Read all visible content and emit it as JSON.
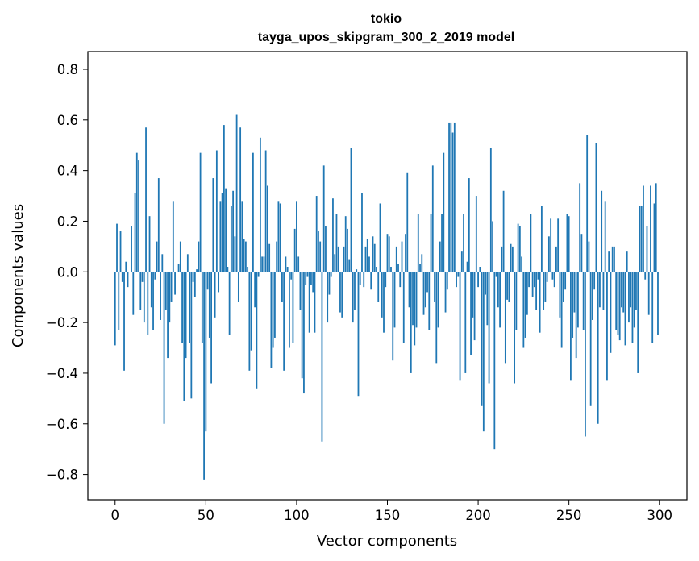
{
  "chart_data": {
    "type": "bar",
    "title": "tokio",
    "subtitle": "tayga_upos_skipgram_300_2_2019 model",
    "xlabel": "Vector components",
    "ylabel": "Components values",
    "xlim": [
      -15,
      315
    ],
    "ylim": [
      -0.9,
      0.87
    ],
    "xticks": [
      0,
      50,
      100,
      150,
      200,
      250,
      300
    ],
    "xtick_labels": [
      "0",
      "50",
      "100",
      "150",
      "200",
      "250",
      "300"
    ],
    "yticks": [
      0.8,
      0.6,
      0.4,
      0.2,
      0.0,
      -0.2,
      -0.4,
      -0.6,
      -0.8
    ],
    "ytick_labels": [
      "0.8",
      "0.6",
      "0.4",
      "0.2",
      "0.0",
      "−0.2",
      "−0.4",
      "−0.6",
      "−0.8"
    ],
    "bar_color": "#1f77b4",
    "x": "0..299",
    "values": [
      -0.29,
      0.19,
      -0.23,
      0.16,
      -0.04,
      -0.39,
      0.04,
      -0.06,
      0.0,
      0.18,
      -0.17,
      0.31,
      0.47,
      0.44,
      -0.15,
      -0.04,
      -0.2,
      0.57,
      -0.25,
      0.22,
      -0.14,
      -0.23,
      -0.03,
      0.12,
      0.37,
      -0.19,
      0.07,
      -0.6,
      -0.15,
      -0.34,
      -0.2,
      -0.12,
      0.28,
      -0.09,
      0.0,
      0.03,
      0.12,
      -0.28,
      -0.51,
      -0.34,
      0.07,
      -0.28,
      -0.5,
      -0.04,
      -0.1,
      0.01,
      0.12,
      0.47,
      -0.28,
      -0.82,
      -0.63,
      -0.07,
      -0.26,
      -0.44,
      0.37,
      -0.18,
      0.48,
      -0.08,
      0.28,
      0.31,
      0.58,
      0.33,
      0.02,
      -0.25,
      0.26,
      0.32,
      0.14,
      0.62,
      -0.12,
      0.57,
      0.28,
      0.13,
      0.12,
      0.02,
      -0.39,
      -0.31,
      0.47,
      -0.14,
      -0.46,
      -0.02,
      0.53,
      0.06,
      0.06,
      0.48,
      0.34,
      0.11,
      -0.38,
      -0.3,
      -0.26,
      0.12,
      0.28,
      0.27,
      -0.12,
      -0.39,
      0.06,
      0.02,
      -0.3,
      -0.03,
      -0.28,
      0.17,
      0.28,
      0.06,
      -0.15,
      -0.42,
      -0.48,
      -0.05,
      -0.02,
      -0.24,
      -0.05,
      -0.08,
      -0.24,
      0.3,
      0.16,
      0.12,
      -0.67,
      0.42,
      0.18,
      -0.2,
      -0.09,
      -0.02,
      0.29,
      0.07,
      0.23,
      0.1,
      -0.16,
      -0.18,
      0.1,
      0.22,
      0.17,
      0.05,
      0.49,
      -0.2,
      -0.15,
      0.01,
      -0.49,
      -0.05,
      0.31,
      -0.06,
      0.1,
      0.13,
      0.06,
      -0.07,
      0.14,
      0.11,
      0.02,
      -0.12,
      0.27,
      -0.18,
      -0.24,
      -0.06,
      0.15,
      0.14,
      0.02,
      -0.35,
      -0.22,
      0.1,
      0.03,
      -0.06,
      0.12,
      -0.28,
      0.15,
      0.39,
      -0.14,
      -0.4,
      -0.21,
      -0.29,
      -0.22,
      0.23,
      0.03,
      0.07,
      -0.17,
      -0.14,
      -0.08,
      -0.23,
      0.23,
      0.42,
      -0.12,
      -0.36,
      -0.22,
      0.12,
      0.23,
      0.47,
      -0.16,
      -0.07,
      0.59,
      0.59,
      0.55,
      0.59,
      -0.06,
      -0.02,
      -0.43,
      0.08,
      0.23,
      -0.4,
      0.04,
      0.37,
      -0.33,
      -0.18,
      -0.27,
      0.3,
      -0.06,
      0.02,
      -0.53,
      -0.63,
      -0.09,
      -0.21,
      -0.44,
      0.49,
      0.2,
      -0.7,
      -0.02,
      -0.14,
      -0.22,
      0.1,
      0.32,
      -0.36,
      -0.11,
      -0.12,
      0.11,
      0.1,
      -0.44,
      -0.23,
      0.19,
      0.18,
      0.06,
      -0.3,
      -0.26,
      -0.17,
      -0.06,
      0.23,
      -0.1,
      -0.06,
      -0.15,
      -0.03,
      -0.24,
      0.26,
      -0.15,
      -0.12,
      -0.04,
      0.14,
      0.21,
      -0.03,
      -0.06,
      0.1,
      0.21,
      -0.18,
      -0.3,
      -0.12,
      -0.07,
      0.23,
      0.22,
      -0.43,
      -0.26,
      -0.16,
      -0.34,
      -0.22,
      0.35,
      0.15,
      -0.23,
      -0.65,
      0.54,
      0.12,
      -0.53,
      -0.19,
      -0.07,
      0.51,
      -0.6,
      -0.14,
      0.32,
      -0.15,
      0.28,
      -0.43,
      0.08,
      -0.32,
      0.1,
      0.1,
      -0.23,
      -0.25,
      -0.27,
      -0.14,
      -0.16,
      -0.29,
      0.08,
      -0.2,
      -0.14,
      -0.28,
      -0.22,
      -0.15,
      -0.4,
      0.26,
      0.26,
      0.34,
      -0.03,
      0.18,
      -0.17,
      0.34,
      -0.28,
      0.27,
      0.35,
      -0.25
    ],
    "grid": false,
    "legend": false
  }
}
